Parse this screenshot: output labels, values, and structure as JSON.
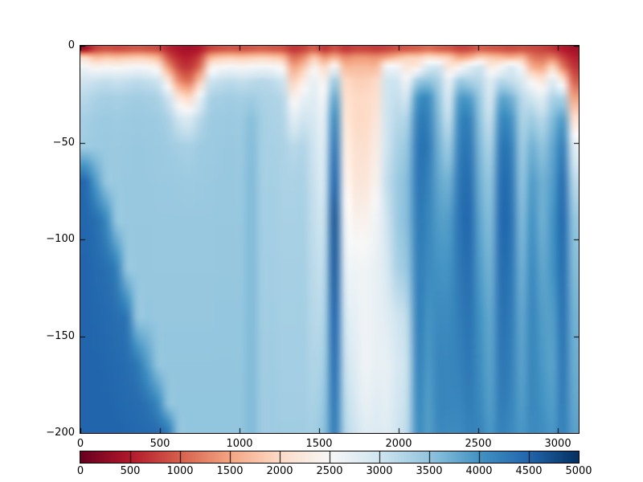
{
  "chart_data": {
    "type": "heatmap",
    "title": "",
    "xlabel": "",
    "ylabel": "",
    "x_range": [
      0,
      3131
    ],
    "depth_range_m": [
      0,
      200
    ],
    "grid_lines": "off",
    "x_ticks": {
      "values": [
        0,
        500,
        1000,
        1500,
        2000,
        2500,
        3000
      ],
      "labels": [
        "0",
        "500",
        "1000",
        "1500",
        "2000",
        "2500",
        "3000"
      ]
    },
    "y_ticks": {
      "depths": [
        0,
        50,
        100,
        150,
        200
      ],
      "labels": [
        "0",
        "−50",
        "−100",
        "−150",
        "−200"
      ]
    },
    "colormap": {
      "name": "RdBu",
      "anchors": [
        "#67001f",
        "#b2182b",
        "#d6604d",
        "#f4a582",
        "#fddbc7",
        "#f7f7f7",
        "#d1e5f0",
        "#92c5de",
        "#4393c3",
        "#2166ac",
        "#053061"
      ]
    },
    "colorbar": {
      "orientation": "horizontal",
      "min": 0,
      "max": 5000,
      "tick_values": [
        0,
        500,
        1000,
        1500,
        2000,
        2500,
        3000,
        3500,
        4000,
        4500,
        5000
      ],
      "tick_labels": [
        "0",
        "500",
        "1000",
        "1500",
        "2000",
        "2500",
        "3000",
        "3500",
        "4000",
        "4500",
        "5000"
      ]
    },
    "grid": {
      "columns": 48,
      "x_max": 3131,
      "depth_centers_m": [
        2,
        6,
        11,
        18,
        27,
        38,
        52,
        70,
        90,
        115,
        140,
        165,
        185,
        198
      ],
      "values": [
        [
          400,
          800,
          900,
          850,
          900,
          950,
          900,
          850,
          600,
          450,
          400,
          500,
          800,
          900,
          950,
          900,
          950,
          1000,
          950,
          900,
          700,
          800,
          1000,
          700,
          900,
          700,
          800,
          800,
          750,
          800,
          900,
          950,
          1000,
          1100,
          1000,
          950,
          800,
          850,
          1000,
          950,
          900,
          850,
          900,
          850,
          800,
          700,
          500,
          400
        ],
        [
          2000,
          1700,
          1800,
          1750,
          1800,
          1850,
          1800,
          1600,
          900,
          600,
          550,
          800,
          1600,
          1800,
          1850,
          1800,
          1850,
          1900,
          1850,
          1700,
          1100,
          1300,
          1800,
          1400,
          1600,
          1300,
          1400,
          1400,
          1350,
          1500,
          1700,
          1900,
          1900,
          2100,
          2000,
          1900,
          1500,
          1600,
          1900,
          1800,
          1700,
          1600,
          1700,
          1200,
          1100,
          1200,
          800,
          550
        ],
        [
          2600,
          2400,
          2500,
          2450,
          2500,
          2550,
          2500,
          2300,
          1400,
          800,
          700,
          1100,
          2300,
          2500,
          2550,
          2500,
          2550,
          2600,
          2550,
          2400,
          1500,
          1800,
          2400,
          2000,
          2600,
          1700,
          1700,
          1700,
          1700,
          2600,
          2600,
          2200,
          2300,
          2900,
          3000,
          2200,
          2400,
          2800,
          3000,
          2300,
          2500,
          2900,
          2500,
          1600,
          1500,
          2000,
          1200,
          700
        ],
        [
          3000,
          3050,
          3100,
          3050,
          3100,
          3150,
          3100,
          3000,
          2200,
          1300,
          1100,
          1800,
          3000,
          3100,
          3150,
          3100,
          3150,
          3200,
          3150,
          3000,
          1900,
          2300,
          2700,
          2400,
          3400,
          2000,
          1900,
          1900,
          2000,
          3000,
          3000,
          2600,
          3400,
          3500,
          3300,
          2700,
          3400,
          3300,
          3200,
          2800,
          3200,
          3100,
          2900,
          2400,
          2200,
          2800,
          2200,
          1000
        ],
        [
          3200,
          3300,
          3350,
          3330,
          3350,
          3380,
          3350,
          3300,
          3000,
          2200,
          2000,
          2700,
          3300,
          3350,
          3380,
          3350,
          3380,
          3300,
          3280,
          3200,
          2400,
          2700,
          2800,
          2600,
          3800,
          2100,
          2000,
          2000,
          2100,
          3000,
          3100,
          3000,
          4000,
          4100,
          3500,
          2900,
          3900,
          3900,
          3400,
          2900,
          3800,
          3700,
          3200,
          3000,
          2800,
          3300,
          3300,
          1500
        ],
        [
          3350,
          3400,
          3420,
          3400,
          3420,
          3430,
          3420,
          3400,
          3300,
          3000,
          2900,
          3200,
          3400,
          3420,
          3430,
          3420,
          3550,
          3350,
          3300,
          3250,
          2800,
          3000,
          2900,
          2800,
          4100,
          2200,
          2000,
          2000,
          2200,
          3000,
          3200,
          3300,
          4200,
          4200,
          3600,
          3100,
          4100,
          4200,
          3500,
          3100,
          4100,
          4000,
          3300,
          3400,
          3200,
          3600,
          3900,
          2100
        ],
        [
          3400,
          3420,
          3440,
          3430,
          3440,
          3450,
          3440,
          3430,
          3400,
          3350,
          3330,
          3400,
          3420,
          3440,
          3450,
          3440,
          3580,
          3350,
          3320,
          3300,
          3200,
          3250,
          3000,
          2900,
          4300,
          2300,
          2100,
          2100,
          2300,
          3000,
          3300,
          3500,
          4300,
          4300,
          3700,
          3400,
          4200,
          4300,
          3600,
          3300,
          4300,
          4200,
          3400,
          3700,
          3500,
          3800,
          4200,
          2800
        ],
        [
          4450,
          3900,
          3450,
          3440,
          3450,
          3450,
          3450,
          3440,
          3440,
          3430,
          3420,
          3430,
          3440,
          3450,
          3450,
          3450,
          3600,
          3350,
          3350,
          3300,
          3300,
          3300,
          3050,
          3000,
          4500,
          2400,
          2200,
          2200,
          2400,
          3100,
          3400,
          3600,
          4300,
          4200,
          3800,
          3700,
          4300,
          4400,
          3700,
          3500,
          4400,
          4300,
          3500,
          3900,
          3700,
          3900,
          4400,
          3200
        ],
        [
          4480,
          4400,
          4100,
          3460,
          3460,
          3460,
          3460,
          3450,
          3450,
          3450,
          3450,
          3450,
          3450,
          3460,
          3460,
          3460,
          3600,
          3360,
          3360,
          3320,
          3320,
          3320,
          3100,
          3100,
          4650,
          2600,
          2400,
          2400,
          2600,
          3000,
          3400,
          3600,
          4250,
          4150,
          3900,
          3900,
          4350,
          4450,
          3800,
          3600,
          4450,
          4350,
          3600,
          4000,
          3700,
          4000,
          4450,
          3500
        ],
        [
          4500,
          4450,
          4400,
          4200,
          3470,
          3470,
          3470,
          3460,
          3460,
          3460,
          3460,
          3460,
          3460,
          3470,
          3470,
          3470,
          3600,
          3370,
          3370,
          3340,
          3340,
          3340,
          3150,
          3200,
          4600,
          2800,
          2600,
          2600,
          2700,
          2900,
          3300,
          3500,
          4200,
          4100,
          4000,
          4000,
          4300,
          4400,
          3900,
          3700,
          4400,
          4300,
          3700,
          4100,
          3800,
          4000,
          4400,
          3600
        ],
        [
          4500,
          4480,
          4450,
          4400,
          4300,
          3480,
          3480,
          3470,
          3470,
          3470,
          3470,
          3470,
          3470,
          3480,
          3480,
          3480,
          3600,
          3380,
          3380,
          3350,
          3350,
          3350,
          3200,
          3300,
          4500,
          3000,
          2700,
          2600,
          2700,
          2800,
          3000,
          3200,
          4200,
          4000,
          4100,
          4100,
          4250,
          4350,
          4000,
          3800,
          4350,
          4250,
          3800,
          4150,
          3900,
          3900,
          4350,
          3700
        ],
        [
          4500,
          4500,
          4480,
          4450,
          4420,
          4300,
          3900,
          3490,
          3490,
          3490,
          3490,
          3490,
          3490,
          3490,
          3490,
          3490,
          3600,
          3390,
          3390,
          3360,
          3360,
          3360,
          3250,
          3400,
          4400,
          3100,
          2800,
          2600,
          2700,
          2700,
          2900,
          3100,
          4150,
          3950,
          4150,
          4150,
          4200,
          4300,
          4050,
          3850,
          4300,
          4200,
          3850,
          4150,
          3950,
          3850,
          4300,
          3750
        ],
        [
          4500,
          4500,
          4500,
          4480,
          4450,
          4430,
          4350,
          4100,
          3500,
          3500,
          3500,
          3500,
          3500,
          3500,
          3500,
          3500,
          3600,
          3400,
          3400,
          3370,
          3370,
          3370,
          3300,
          3500,
          4300,
          3200,
          2900,
          2700,
          2800,
          2750,
          2950,
          3150,
          4100,
          3900,
          4150,
          4150,
          4150,
          4250,
          4100,
          3900,
          4250,
          4150,
          3900,
          4150,
          4000,
          3900,
          4250,
          3800
        ],
        [
          4500,
          4500,
          4500,
          4500,
          4480,
          4460,
          4440,
          4400,
          4200,
          3500,
          3500,
          3500,
          3500,
          3500,
          3500,
          3500,
          3600,
          3400,
          3400,
          3380,
          3380,
          3380,
          3350,
          3550,
          4250,
          3250,
          3000,
          2800,
          2850,
          2800,
          3000,
          3200,
          4050,
          3900,
          4100,
          4100,
          4100,
          4200,
          4150,
          3950,
          4200,
          4100,
          3950,
          4100,
          4050,
          3950,
          4200,
          3850
        ]
      ]
    }
  }
}
